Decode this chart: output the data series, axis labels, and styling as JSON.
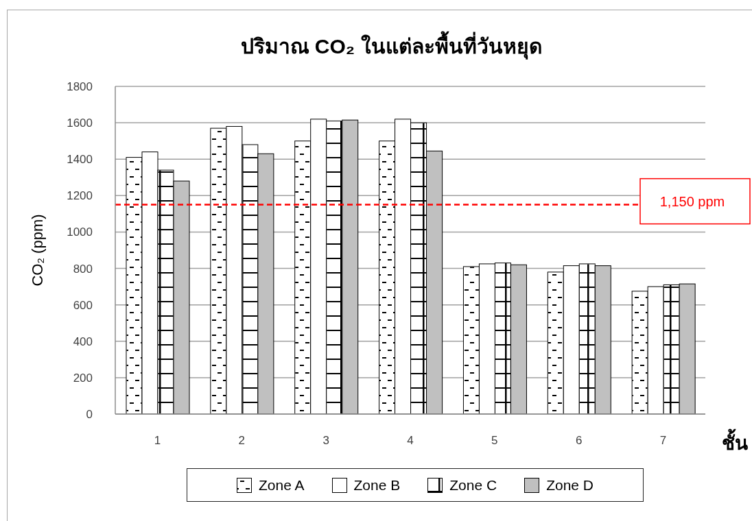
{
  "chart_data": {
    "type": "bar",
    "title": "ปริมาณ CO₂ ในแต่ละพื้นที่วันหยุด",
    "xlabel": "ชั้น",
    "ylabel": "CO₂ (ppm)",
    "categories": [
      "1",
      "2",
      "3",
      "4",
      "5",
      "6",
      "7"
    ],
    "series": [
      {
        "name": "Zone A",
        "color": "#ffffff",
        "values": [
          1410,
          1570,
          1500,
          1500,
          810,
          780,
          675
        ]
      },
      {
        "name": "Zone B",
        "color": "#ffffff",
        "values": [
          1440,
          1580,
          1620,
          1620,
          825,
          815,
          700
        ]
      },
      {
        "name": "Zone C",
        "color": "#ffffff",
        "values": [
          1340,
          1480,
          1610,
          1600,
          830,
          825,
          710
        ]
      },
      {
        "name": "Zone D",
        "color": "#c0c0c0",
        "values": [
          1280,
          1430,
          1615,
          1445,
          820,
          815,
          715
        ]
      }
    ],
    "ylim": [
      0,
      1800
    ],
    "yticks": [
      0,
      200,
      400,
      600,
      800,
      1000,
      1200,
      1400,
      1600,
      1800
    ],
    "grid": "y",
    "legend": "bottom",
    "ref_lines": [
      {
        "axis": "y",
        "value": 1150,
        "label": "1,150 ppm",
        "color": "#ff0000",
        "line_style": "dashed"
      }
    ]
  }
}
